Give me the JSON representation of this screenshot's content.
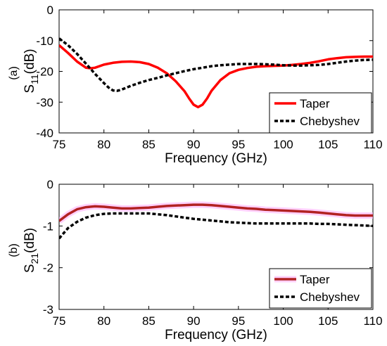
{
  "chart_data": [
    {
      "type": "line",
      "panel_label": "(a)",
      "xlabel": "Frequency (GHz)",
      "ylabel_main": "S",
      "ylabel_sub": "11",
      "ylabel_unit": "(dB)",
      "xlim": [
        75,
        110
      ],
      "ylim": [
        -40,
        0
      ],
      "xticks": [
        "75",
        "80",
        "85",
        "90",
        "95",
        "100",
        "105",
        "110"
      ],
      "yticks": [
        "0",
        "-10",
        "-20",
        "-30",
        "-40"
      ],
      "grid": false,
      "legend_position": "lower-right",
      "series": [
        {
          "name": "Taper",
          "color": "#ff0000",
          "style": "solid",
          "x": [
            75,
            76,
            77,
            78,
            78.5,
            79,
            80,
            81,
            82,
            83,
            84,
            85,
            86,
            87,
            88,
            89,
            89.5,
            90,
            90.5,
            91,
            91.5,
            92,
            93,
            94,
            95,
            96,
            97,
            98,
            99,
            100,
            101,
            102,
            103,
            104,
            105,
            106,
            107,
            108,
            109,
            110
          ],
          "y": [
            -11.5,
            -14,
            -16.8,
            -18.8,
            -19,
            -18.8,
            -17.8,
            -17.2,
            -16.9,
            -16.8,
            -17,
            -17.6,
            -18.8,
            -20.6,
            -23.2,
            -26.5,
            -28.8,
            -30.8,
            -31.6,
            -30.8,
            -28.8,
            -26.3,
            -22.8,
            -20.6,
            -19.5,
            -18.9,
            -18.5,
            -18.3,
            -18.2,
            -18.1,
            -17.9,
            -17.6,
            -17.2,
            -16.7,
            -16.1,
            -15.7,
            -15.4,
            -15.3,
            -15.2,
            -15.2
          ]
        },
        {
          "name": "Chebyshev",
          "color": "#000000",
          "style": "dashed",
          "x": [
            75,
            76,
            77,
            78,
            79,
            80,
            80.5,
            81,
            81.5,
            82,
            83,
            84,
            85,
            86,
            87,
            88,
            89,
            90,
            91,
            92,
            93,
            94,
            95,
            96,
            97,
            98,
            99,
            100,
            101,
            102,
            103,
            104,
            105,
            106,
            107,
            108,
            109,
            110
          ],
          "y": [
            -9.3,
            -11.5,
            -14.3,
            -17.5,
            -20.8,
            -23.8,
            -25.2,
            -26.2,
            -26.3,
            -25.9,
            -24.7,
            -23.7,
            -22.8,
            -22.1,
            -21.3,
            -20.6,
            -19.9,
            -19.3,
            -18.8,
            -18.3,
            -18,
            -17.8,
            -17.6,
            -17.6,
            -17.6,
            -17.7,
            -17.8,
            -18,
            -18.1,
            -18.1,
            -18,
            -17.9,
            -17.6,
            -17.2,
            -16.8,
            -16.5,
            -16.3,
            -16.2
          ]
        }
      ]
    },
    {
      "type": "line",
      "panel_label": "(b)",
      "xlabel": "Frequency (GHz)",
      "ylabel_main": "S",
      "ylabel_sub": "21",
      "ylabel_unit": "(dB)",
      "xlim": [
        75,
        110
      ],
      "ylim": [
        -3,
        0
      ],
      "xticks": [
        "75",
        "80",
        "85",
        "90",
        "95",
        "100",
        "105",
        "110"
      ],
      "yticks": [
        "0",
        "-1",
        "-2",
        "-3"
      ],
      "grid": false,
      "legend_position": "lower-right",
      "series": [
        {
          "name": "Taper",
          "color": "#b22222",
          "halo_color": "#ffb3ff",
          "style": "solid",
          "x": [
            75,
            76,
            77,
            78,
            79,
            80,
            81,
            82,
            83,
            84,
            85,
            86,
            87,
            88,
            89,
            90,
            91,
            92,
            93,
            94,
            95,
            96,
            97,
            98,
            99,
            100,
            101,
            102,
            103,
            104,
            105,
            106,
            107,
            108,
            109,
            110
          ],
          "y": [
            -0.88,
            -0.72,
            -0.6,
            -0.55,
            -0.53,
            -0.54,
            -0.56,
            -0.58,
            -0.58,
            -0.57,
            -0.56,
            -0.54,
            -0.52,
            -0.51,
            -0.5,
            -0.49,
            -0.49,
            -0.5,
            -0.52,
            -0.54,
            -0.56,
            -0.58,
            -0.59,
            -0.61,
            -0.62,
            -0.63,
            -0.64,
            -0.65,
            -0.66,
            -0.68,
            -0.7,
            -0.72,
            -0.74,
            -0.75,
            -0.75,
            -0.75
          ]
        },
        {
          "name": "Chebyshev",
          "color": "#000000",
          "style": "dashed",
          "x": [
            75,
            76,
            77,
            78,
            79,
            80,
            81,
            82,
            83,
            84,
            85,
            86,
            87,
            88,
            89,
            90,
            91,
            92,
            93,
            94,
            95,
            96,
            97,
            98,
            99,
            100,
            101,
            102,
            103,
            104,
            105,
            106,
            107,
            108,
            109,
            110
          ],
          "y": [
            -1.3,
            -1.05,
            -0.9,
            -0.8,
            -0.74,
            -0.71,
            -0.7,
            -0.7,
            -0.7,
            -0.7,
            -0.7,
            -0.72,
            -0.74,
            -0.77,
            -0.8,
            -0.83,
            -0.85,
            -0.87,
            -0.89,
            -0.91,
            -0.92,
            -0.93,
            -0.94,
            -0.94,
            -0.94,
            -0.94,
            -0.94,
            -0.94,
            -0.94,
            -0.95,
            -0.95,
            -0.96,
            -0.97,
            -0.98,
            -0.99,
            -1.0
          ]
        }
      ]
    }
  ]
}
